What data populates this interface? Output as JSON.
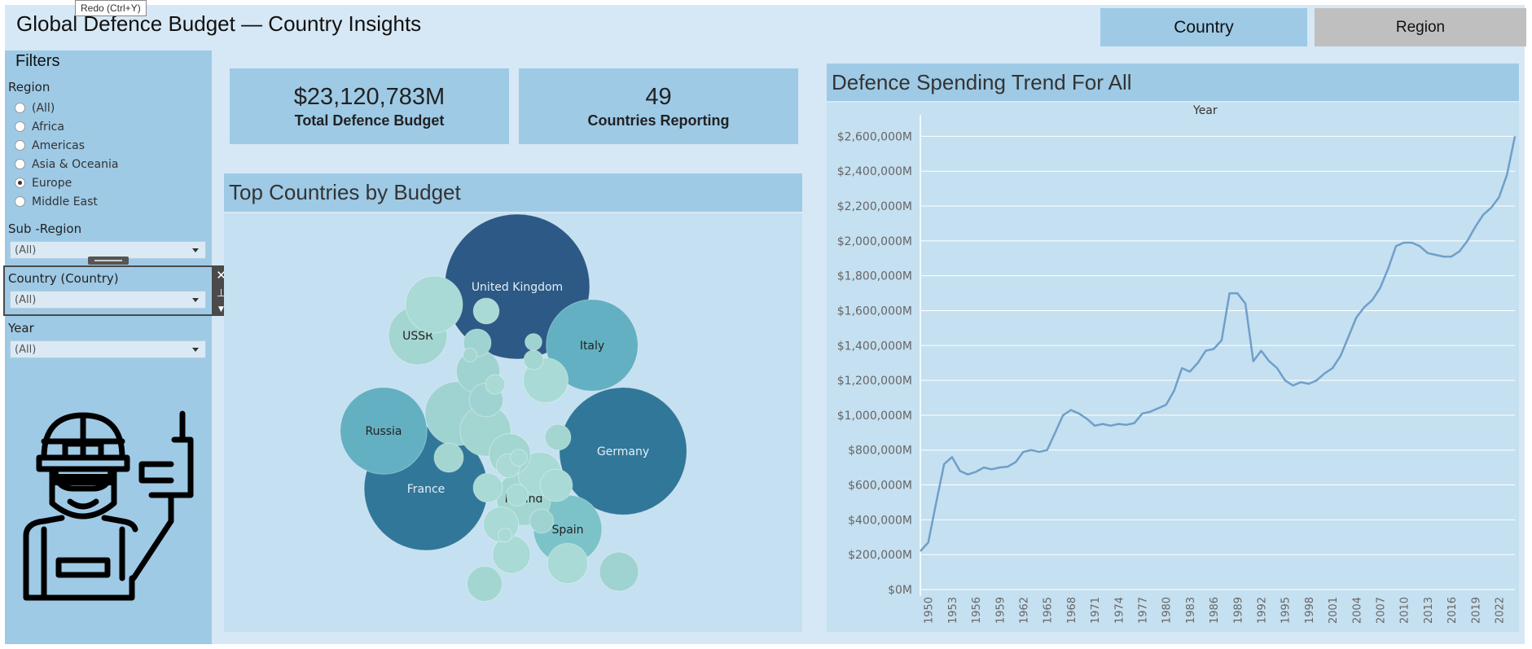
{
  "tooltip": "Redo (Ctrl+Y)",
  "header": {
    "title": "Global Defence Budget — Country Insights",
    "tabs": [
      {
        "label": "Country",
        "active": true
      },
      {
        "label": "Region",
        "active": false
      }
    ]
  },
  "filters": {
    "title": "Filters",
    "region": {
      "label": "Region",
      "options": [
        "(All)",
        "Africa",
        "Americas",
        "Asia & Oceania",
        "Europe",
        "Middle East"
      ],
      "selected": "Europe"
    },
    "sub_region": {
      "label": "Sub -Region",
      "value": "(All)"
    },
    "country": {
      "label": "Country (Country)",
      "value": "(All)"
    },
    "year": {
      "label": "Year",
      "value": "(All)"
    }
  },
  "kpis": [
    {
      "value": "$23,120,783M",
      "label": "Total Defence Budget"
    },
    {
      "value": "49",
      "label": "Countries Reporting"
    }
  ],
  "bubble_panel": {
    "title": "Top Countries by Budget"
  },
  "trend_panel": {
    "title": "Defence Spending Trend For All",
    "axis_header": "Year"
  },
  "colors": {
    "dashboard_bg": "#d6e8f5",
    "panel_header": "#9ecae6",
    "panel_body": "#c5e0f0",
    "line": "#6f9fc9",
    "inactive_tab": "#bfbfbf"
  },
  "icons": {
    "soldier": "soldier-with-rifle-icon"
  },
  "chart_data": [
    {
      "type": "bubble",
      "title": "Top Countries by Budget",
      "labeled_bubbles": [
        {
          "label": "United Kingdom",
          "value": 2200000
        },
        {
          "label": "Germany",
          "value": 1700000
        },
        {
          "label": "France",
          "value": 1600000
        },
        {
          "label": "Italy",
          "value": 880000
        },
        {
          "label": "Russia",
          "value": 790000
        },
        {
          "label": "Spain",
          "value": 490000
        },
        {
          "label": "USSR",
          "value": 360000
        },
        {
          "label": "Poland",
          "value": 310000
        }
      ],
      "unlabeled_bubbles": [
        430000,
        340000,
        270000,
        210000,
        200000,
        200000,
        180000,
        170000,
        160000,
        150000,
        130000,
        130000,
        120000,
        110000,
        90000,
        90000,
        80000,
        70000,
        70000,
        60000,
        60000,
        50000,
        40000,
        40000,
        30000,
        30000,
        20000,
        20000
      ]
    },
    {
      "type": "line",
      "title": "Defence Spending Trend For All",
      "xlabel": "Year",
      "ylabel": "",
      "ylim": [
        0,
        2700000
      ],
      "y_ticks": [
        "$0M",
        "$200,000M",
        "$400,000M",
        "$600,000M",
        "$800,000M",
        "$1,000,000M",
        "$1,200,000M",
        "$1,400,000M",
        "$1,600,000M",
        "$1,800,000M",
        "$2,000,000M",
        "$2,200,000M",
        "$2,400,000M",
        "$2,600,000M"
      ],
      "x_ticks": [
        "1950",
        "1953",
        "1956",
        "1959",
        "1962",
        "1965",
        "1968",
        "1971",
        "1974",
        "1977",
        "1980",
        "1983",
        "1986",
        "1989",
        "1992",
        "1995",
        "1998",
        "2001",
        "2004",
        "2007",
        "2010",
        "2013",
        "2016",
        "2019",
        "2022"
      ],
      "grid": true,
      "series": [
        {
          "x": [
            1949,
            1950,
            1951,
            1952,
            1953,
            1954,
            1955,
            1956,
            1957,
            1958,
            1959,
            1960,
            1961,
            1962,
            1963,
            1964,
            1965,
            1966,
            1967,
            1968,
            1969,
            1970,
            1971,
            1972,
            1973,
            1974,
            1975,
            1976,
            1977,
            1978,
            1979,
            1980,
            1981,
            1982,
            1983,
            1984,
            1985,
            1986,
            1987,
            1988,
            1989,
            1990,
            1991,
            1992,
            1993,
            1994,
            1995,
            1996,
            1997,
            1998,
            1999,
            2000,
            2001,
            2002,
            2003,
            2004,
            2005,
            2006,
            2007,
            2008,
            2009,
            2010,
            2011,
            2012,
            2013,
            2014,
            2015,
            2016,
            2017,
            2018,
            2019,
            2020,
            2021,
            2022,
            2023,
            2024
          ],
          "values": [
            220000,
            270000,
            500000,
            720000,
            760000,
            680000,
            660000,
            675000,
            700000,
            690000,
            700000,
            705000,
            730000,
            790000,
            800000,
            790000,
            800000,
            900000,
            1000000,
            1030000,
            1010000,
            980000,
            940000,
            950000,
            940000,
            950000,
            945000,
            955000,
            1010000,
            1020000,
            1040000,
            1060000,
            1140000,
            1270000,
            1250000,
            1300000,
            1370000,
            1380000,
            1430000,
            1700000,
            1700000,
            1640000,
            1310000,
            1370000,
            1310000,
            1270000,
            1200000,
            1170000,
            1190000,
            1180000,
            1200000,
            1240000,
            1270000,
            1340000,
            1450000,
            1560000,
            1620000,
            1660000,
            1730000,
            1840000,
            1970000,
            1990000,
            1990000,
            1970000,
            1930000,
            1920000,
            1910000,
            1910000,
            1940000,
            2000000,
            2080000,
            2150000,
            2190000,
            2250000,
            2380000,
            2600000
          ]
        }
      ]
    }
  ]
}
